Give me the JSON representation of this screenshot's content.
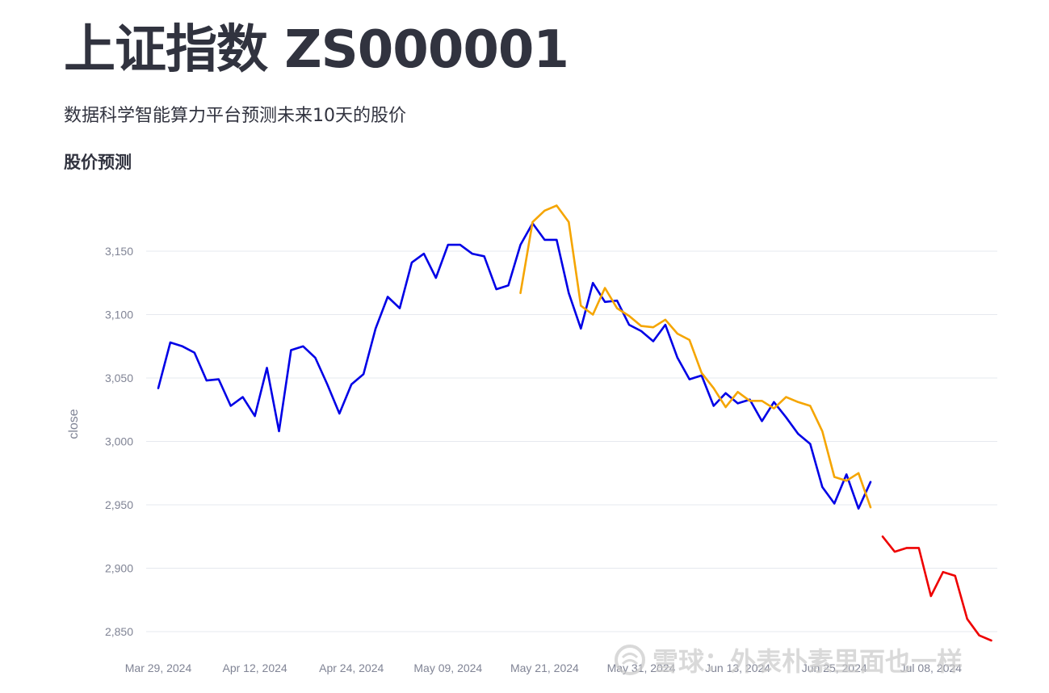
{
  "page": {
    "title": "上证指数 ZS000001",
    "subtitle": "数据科学智能算力平台预测未来10天的股价",
    "section_heading": "股价预测"
  },
  "watermark": {
    "text": "雪球：外表朴素里面也一样"
  },
  "chart_data": {
    "type": "line",
    "xlabel": "",
    "ylabel": "close",
    "ylim": [
      2838,
      3185
    ],
    "grid": true,
    "y_ticks": [
      2850,
      2900,
      2950,
      3000,
      3050,
      3100,
      3150
    ],
    "y_tick_labels": [
      "2,850",
      "2,900",
      "2,950",
      "3,000",
      "3,050",
      "3,100",
      "3,150"
    ],
    "x_tick_labels": [
      "Mar 29, 2024",
      "Apr 12, 2024",
      "Apr 24, 2024",
      "May 09, 2024",
      "May 21, 2024",
      "May 31, 2024",
      "Jun 13, 2024",
      "Jun 25, 2024",
      "Jul 08, 2024"
    ],
    "x_tick_index": [
      0,
      8,
      16,
      24,
      32,
      40,
      48,
      56,
      64
    ],
    "series": [
      {
        "color": "#0000e6",
        "start_index": 0,
        "values": [
          3042,
          3078,
          3075,
          3070,
          3048,
          3049,
          3028,
          3035,
          3020,
          3058,
          3008,
          3072,
          3075,
          3066,
          3045,
          3022,
          3045,
          3053,
          3089,
          3114,
          3105,
          3141,
          3148,
          3129,
          3155,
          3155,
          3148,
          3146,
          3120,
          3123,
          3155,
          3172,
          3159,
          3159,
          3117,
          3089,
          3125,
          3110,
          3111,
          3092,
          3087,
          3079,
          3092,
          3066,
          3049,
          3052,
          3028,
          3038,
          3030,
          3033,
          3016,
          3031,
          3019,
          3006,
          2998,
          2964,
          2951,
          2974,
          2947,
          2968
        ]
      },
      {
        "color": "#f5a500",
        "start_index": 30,
        "values": [
          3117,
          3173,
          3182,
          3186,
          3173,
          3107,
          3100,
          3121,
          3105,
          3099,
          3091,
          3090,
          3096,
          3085,
          3080,
          3054,
          3042,
          3027,
          3039,
          3032,
          3032,
          3026,
          3035,
          3031,
          3028,
          3008,
          2972,
          2969,
          2975,
          2948
        ]
      },
      {
        "color": "#ee0000",
        "start_index": 60,
        "values": [
          2925,
          2913,
          2916,
          2916,
          2878,
          2897,
          2894,
          2860,
          2847,
          2843
        ]
      }
    ]
  }
}
